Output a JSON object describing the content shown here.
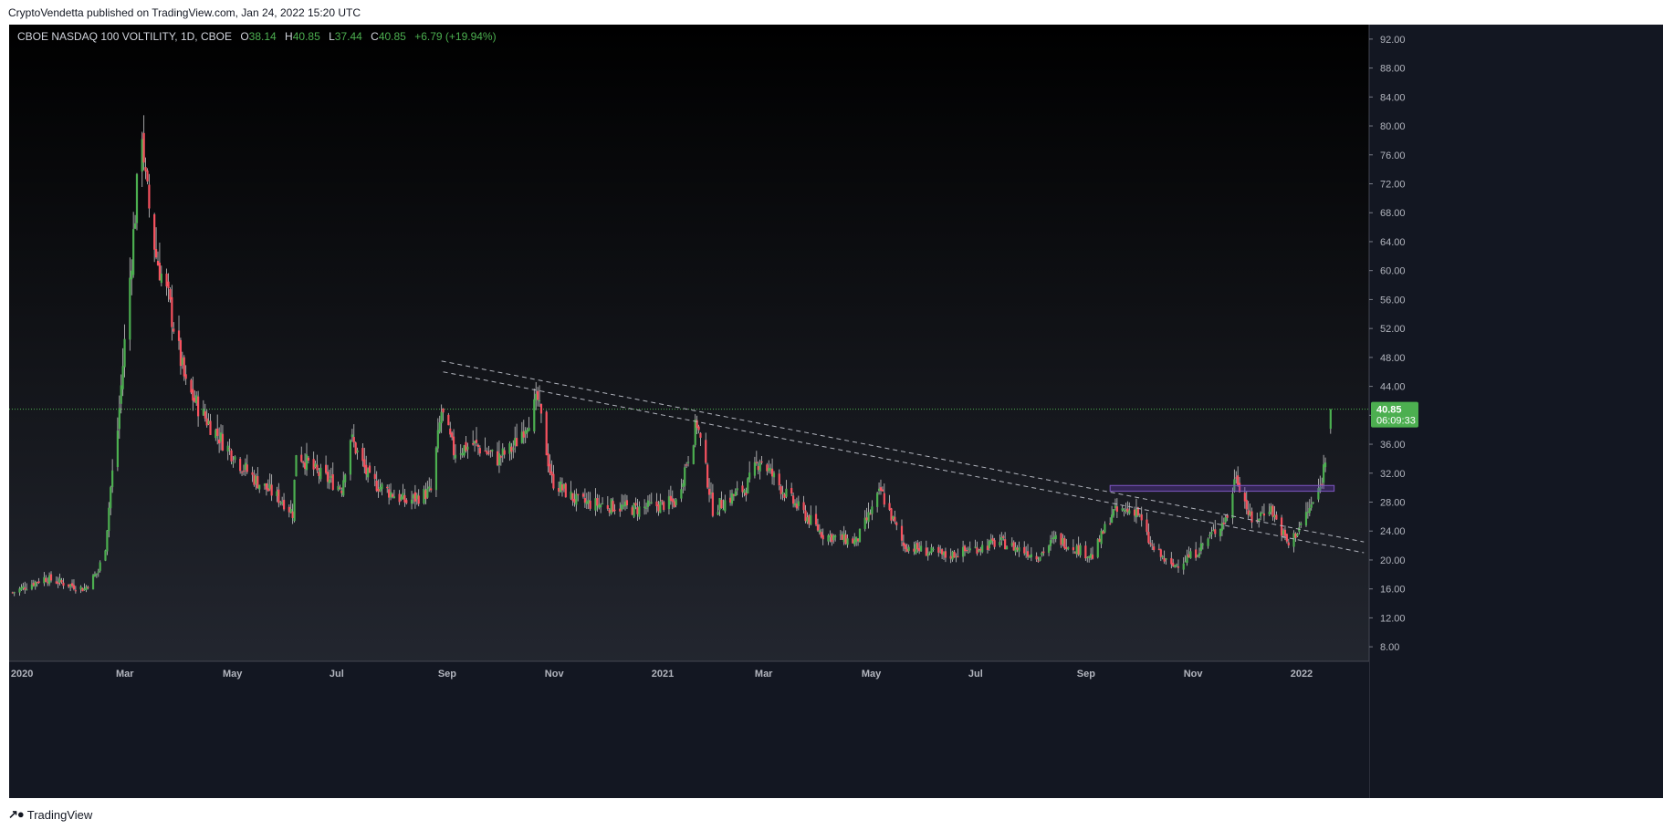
{
  "publisher_line": "CryptoVendetta published on TradingView.com, Jan 24, 2022 15:20 UTC",
  "symbol": {
    "name": "CBOE NASDAQ 100 VOLTILITY, 1D, CBOE",
    "o_label": "O",
    "o": "38.14",
    "h_label": "H",
    "h": "40.85",
    "l_label": "L",
    "l": "37.44",
    "c_label": "C",
    "c": "40.85",
    "change": "+6.79 (+19.94%)"
  },
  "last_price": {
    "price": "40.85",
    "countdown": "06:09:33"
  },
  "footer": {
    "brand": "TradingView"
  },
  "colors": {
    "up": "#4caf50",
    "down": "#f7525f",
    "accent": "#4caf50",
    "background_top": "#000000",
    "background_bottom": "#2a2e39"
  },
  "chart_data": {
    "type": "candlestick",
    "title": "CBOE NASDAQ 100 VOLTILITY, 1D, CBOE",
    "ylim": [
      6,
      94
    ],
    "y_ticks": [
      "92.00",
      "88.00",
      "84.00",
      "80.00",
      "76.00",
      "72.00",
      "68.00",
      "64.00",
      "60.00",
      "56.00",
      "52.00",
      "48.00",
      "44.00",
      "40.00",
      "36.00",
      "32.00",
      "28.00",
      "24.00",
      "20.00",
      "16.00",
      "12.00",
      "8.00"
    ],
    "x_ticks": [
      {
        "label": "2020",
        "date": "2020-01-01"
      },
      {
        "label": "Mar",
        "date": "2020-03-01"
      },
      {
        "label": "May",
        "date": "2020-05-01"
      },
      {
        "label": "Jul",
        "date": "2020-07-01"
      },
      {
        "label": "Sep",
        "date": "2020-09-01"
      },
      {
        "label": "Nov",
        "date": "2020-11-01"
      },
      {
        "label": "2021",
        "date": "2021-01-01"
      },
      {
        "label": "Mar",
        "date": "2021-03-01"
      },
      {
        "label": "May",
        "date": "2021-05-01"
      },
      {
        "label": "Jul",
        "date": "2021-07-01"
      },
      {
        "label": "Sep",
        "date": "2021-09-01"
      },
      {
        "label": "Nov",
        "date": "2021-11-01"
      },
      {
        "label": "2022",
        "date": "2022-01-01"
      }
    ],
    "x_range": [
      "2019-12-31",
      "2022-02-15"
    ],
    "last_price_line": 40.85,
    "key_points": [
      {
        "date": "2020-01-02",
        "close": 15.5
      },
      {
        "date": "2020-01-20",
        "close": 17.5
      },
      {
        "date": "2020-02-12",
        "close": 16.0
      },
      {
        "date": "2020-02-20",
        "close": 18.5
      },
      {
        "date": "2020-02-24",
        "close": 22.0
      },
      {
        "date": "2020-02-27",
        "close": 30.0
      },
      {
        "date": "2020-03-02",
        "close": 38.0
      },
      {
        "date": "2020-03-12",
        "close": 68.0
      },
      {
        "date": "2020-03-16",
        "close": 80.0
      },
      {
        "date": "2020-03-18",
        "close": 72.0
      },
      {
        "date": "2020-03-24",
        "close": 62.0
      },
      {
        "date": "2020-03-31",
        "close": 56.0
      },
      {
        "date": "2020-04-10",
        "close": 44.0
      },
      {
        "date": "2020-04-20",
        "close": 40.0
      },
      {
        "date": "2020-04-29",
        "close": 37.0
      },
      {
        "date": "2020-05-12",
        "close": 33.0
      },
      {
        "date": "2020-05-20",
        "close": 31.0
      },
      {
        "date": "2020-06-05",
        "close": 28.0
      },
      {
        "date": "2020-06-10",
        "close": 26.5
      },
      {
        "date": "2020-06-12",
        "close": 35.0
      },
      {
        "date": "2020-06-24",
        "close": 32.0
      },
      {
        "date": "2020-07-08",
        "close": 30.0
      },
      {
        "date": "2020-07-13",
        "close": 37.0
      },
      {
        "date": "2020-07-24",
        "close": 31.0
      },
      {
        "date": "2020-08-14",
        "close": 28.0
      },
      {
        "date": "2020-08-28",
        "close": 29.5
      },
      {
        "date": "2020-09-03",
        "close": 40.5
      },
      {
        "date": "2020-09-10",
        "close": 35.0
      },
      {
        "date": "2020-09-21",
        "close": 36.0
      },
      {
        "date": "2020-10-05",
        "close": 34.0
      },
      {
        "date": "2020-10-14",
        "close": 35.5
      },
      {
        "date": "2020-10-28",
        "close": 42.0
      },
      {
        "date": "2020-11-05",
        "close": 31.0
      },
      {
        "date": "2020-11-20",
        "close": 28.0
      },
      {
        "date": "2020-12-08",
        "close": 27.5
      },
      {
        "date": "2020-12-23",
        "close": 27.0
      },
      {
        "date": "2021-01-15",
        "close": 28.0
      },
      {
        "date": "2021-01-27",
        "close": 39.0
      },
      {
        "date": "2021-02-05",
        "close": 27.0
      },
      {
        "date": "2021-02-24",
        "close": 30.0
      },
      {
        "date": "2021-03-04",
        "close": 34.0
      },
      {
        "date": "2021-03-19",
        "close": 29.0
      },
      {
        "date": "2021-04-09",
        "close": 23.5
      },
      {
        "date": "2021-04-28",
        "close": 22.5
      },
      {
        "date": "2021-05-12",
        "close": 29.5
      },
      {
        "date": "2021-05-25",
        "close": 22.0
      },
      {
        "date": "2021-06-18",
        "close": 20.5
      },
      {
        "date": "2021-07-19",
        "close": 22.5
      },
      {
        "date": "2021-08-10",
        "close": 20.5
      },
      {
        "date": "2021-08-20",
        "close": 23.0
      },
      {
        "date": "2021-09-10",
        "close": 20.5
      },
      {
        "date": "2021-09-21",
        "close": 26.5
      },
      {
        "date": "2021-10-05",
        "close": 27.0
      },
      {
        "date": "2021-10-13",
        "close": 22.0
      },
      {
        "date": "2021-10-25",
        "close": 19.0
      },
      {
        "date": "2021-11-08",
        "close": 21.0
      },
      {
        "date": "2021-11-26",
        "close": 26.0
      },
      {
        "date": "2021-12-01",
        "close": 32.0
      },
      {
        "date": "2021-12-10",
        "close": 25.0
      },
      {
        "date": "2021-12-20",
        "close": 27.5
      },
      {
        "date": "2021-12-31",
        "close": 22.0
      },
      {
        "date": "2022-01-06",
        "close": 24.5
      },
      {
        "date": "2022-01-13",
        "close": 27.5
      },
      {
        "date": "2022-01-18",
        "close": 30.0
      },
      {
        "date": "2022-01-21",
        "close": 34.06
      },
      {
        "date": "2022-01-24",
        "close": 40.85
      }
    ],
    "last_candle": {
      "date": "2022-01-24",
      "open": 38.14,
      "high": 40.85,
      "low": 37.44,
      "close": 40.85
    },
    "trendlines": [
      {
        "from": {
          "date": "2020-09-03",
          "price": 47.5
        },
        "to": {
          "date": "2022-02-12",
          "price": 22.5
        }
      },
      {
        "from": {
          "date": "2020-09-04",
          "price": 46.0
        },
        "to": {
          "date": "2022-02-12",
          "price": 21.0
        }
      }
    ],
    "zone": {
      "from": "2021-09-20",
      "to": "2022-01-26",
      "price_low": 29.5,
      "price_high": 30.3
    }
  }
}
